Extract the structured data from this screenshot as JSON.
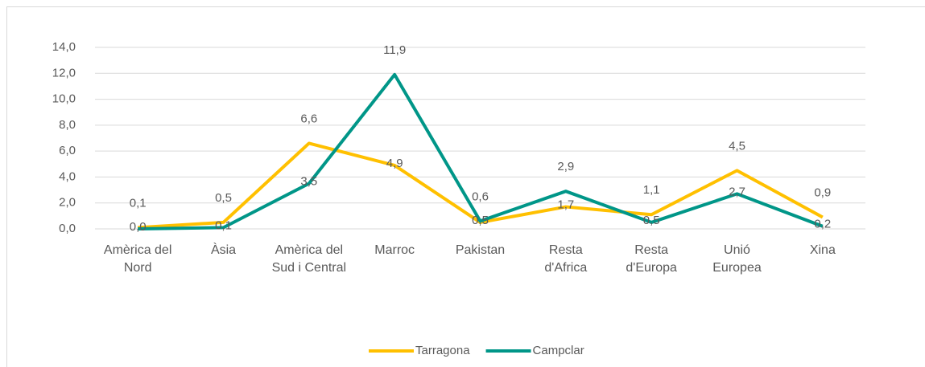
{
  "chart_data": {
    "type": "line",
    "categories": [
      "Amèrica del Nord",
      "Àsia",
      "Amèrica del Sud i Central",
      "Marroc",
      "Pakistan",
      "Resta d'Africa",
      "Resta d'Europa",
      "Unió Europea",
      "Xina"
    ],
    "series": [
      {
        "name": "Tarragona",
        "color": "#ffc000",
        "values": [
          0.1,
          0.5,
          6.6,
          4.9,
          0.5,
          1.7,
          1.1,
          4.5,
          0.9
        ],
        "value_labels": [
          "0,1",
          "0,5",
          "6,6",
          "4,9",
          "0,5",
          "1,7",
          "1,1",
          "4,5",
          "0,9"
        ]
      },
      {
        "name": "Campclar",
        "color": "#009688",
        "values": [
          0.0,
          0.1,
          3.5,
          11.9,
          0.6,
          2.9,
          0.5,
          2.7,
          0.2
        ],
        "value_labels": [
          "0,0",
          "0,1",
          "3,5",
          "11,9",
          "0,6",
          "2,9",
          "0,5",
          "2,7",
          "0,2"
        ]
      }
    ],
    "ylim": [
      0,
      14
    ],
    "yticks": [
      {
        "value": 0,
        "label": "0,0"
      },
      {
        "value": 2,
        "label": "2,0"
      },
      {
        "value": 4,
        "label": "4,0"
      },
      {
        "value": 6,
        "label": "6,0"
      },
      {
        "value": 8,
        "label": "8,0"
      },
      {
        "value": 10,
        "label": "10,0"
      },
      {
        "value": 12,
        "label": "12,0"
      },
      {
        "value": 14,
        "label": "14,0"
      }
    ],
    "grid": true,
    "legend": "bottom"
  }
}
